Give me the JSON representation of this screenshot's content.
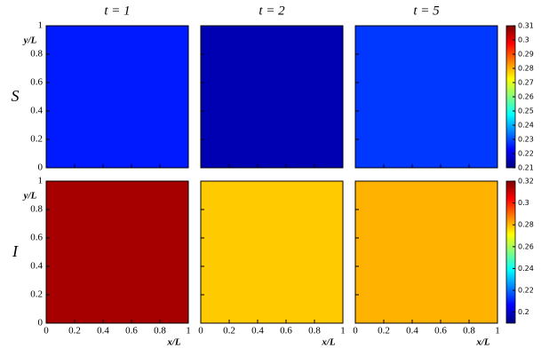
{
  "chart_data": {
    "type": "heatmap",
    "column_titles": [
      "t = 1",
      "t = 2",
      "t = 5"
    ],
    "xlabel": "x/L",
    "ylabel": "y/L",
    "xlim": [
      0,
      1
    ],
    "xticks": [
      0,
      0.2,
      0.4,
      0.6,
      0.8,
      1
    ],
    "ylim": [
      0,
      1
    ],
    "yticks": [
      0,
      0.2,
      0.4,
      0.6,
      0.8,
      1
    ],
    "colormap": "jet",
    "rows": [
      {
        "label": "S",
        "values": [
          0.225,
          0.215,
          0.228
        ],
        "clim": [
          0.21,
          0.31
        ],
        "cticks": [
          0.21,
          0.22,
          0.23,
          0.24,
          0.25,
          0.26,
          0.27,
          0.28,
          0.29,
          0.3,
          0.31
        ]
      },
      {
        "label": "I",
        "values": [
          0.315,
          0.278,
          0.281
        ],
        "clim": [
          0.19,
          0.32
        ],
        "cticks": [
          0.2,
          0.22,
          0.24,
          0.26,
          0.28,
          0.3,
          0.32
        ]
      }
    ]
  }
}
